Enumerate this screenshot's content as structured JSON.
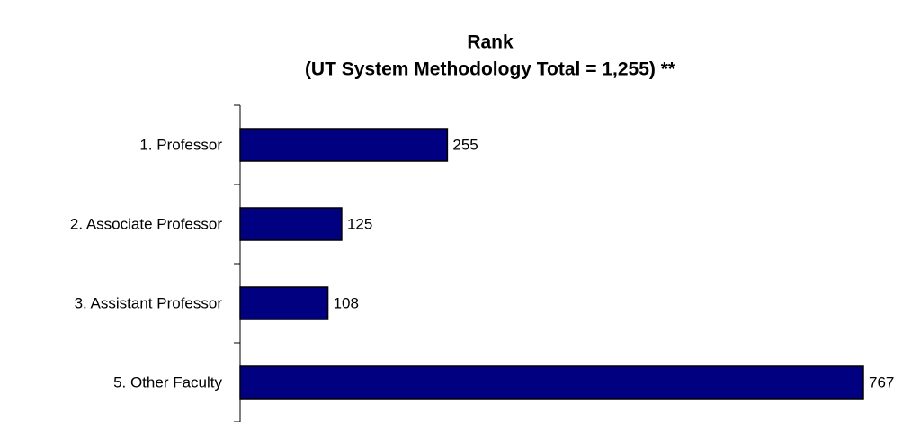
{
  "chart_data": {
    "type": "barh",
    "title": "Rank",
    "subtitle": "(UT System Methodology Total = 1,255) **",
    "categories": [
      "1. Professor",
      "2. Associate Professor",
      "3. Assistant Professor",
      "5. Other Faculty"
    ],
    "values": [
      255,
      125,
      108,
      767
    ],
    "color": "#000080"
  }
}
